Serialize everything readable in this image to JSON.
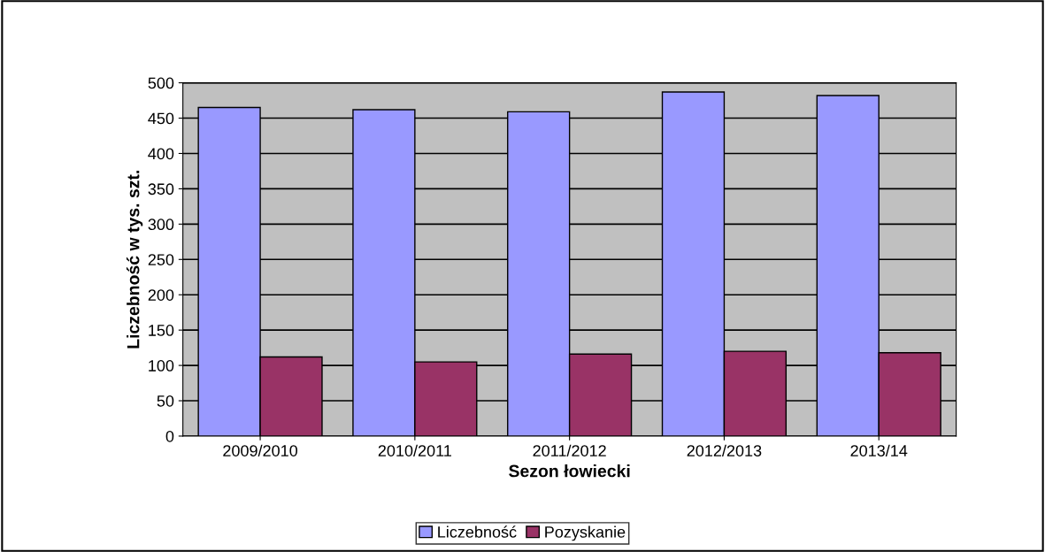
{
  "chart_data": {
    "type": "bar",
    "xlabel": "Sezon łowiecki",
    "ylabel": "Liczebność w tys. szt.",
    "categories": [
      "2009/2010",
      "2010/2011",
      "2011/2012",
      "2012/2013",
      "2013/14"
    ],
    "series": [
      {
        "name": "Liczebność",
        "color": "#9999ff",
        "values": [
          465,
          462,
          459,
          487,
          482
        ]
      },
      {
        "name": "Pozyskanie",
        "color": "#993366",
        "values": [
          112,
          105,
          116,
          120,
          118
        ]
      }
    ],
    "ylim": [
      0,
      500
    ],
    "yticks": [
      0,
      50,
      100,
      150,
      200,
      250,
      300,
      350,
      400,
      450,
      500
    ],
    "grid": "y",
    "legend": "bottom"
  }
}
